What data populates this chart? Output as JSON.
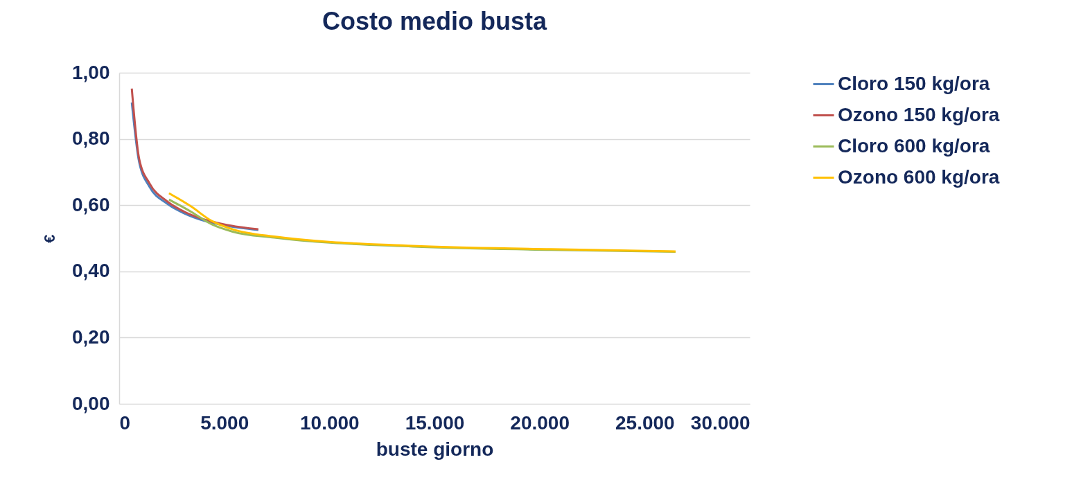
{
  "chart_data": {
    "type": "line",
    "title": "Costo medio busta",
    "xlabel": "buste giorno",
    "ylabel": "€",
    "xlim": [
      0,
      30000
    ],
    "ylim": [
      0,
      1
    ],
    "xticks": [
      {
        "value": 0,
        "label": "0"
      },
      {
        "value": 5000,
        "label": "5.000"
      },
      {
        "value": 10000,
        "label": "10.000"
      },
      {
        "value": 15000,
        "label": "15.000"
      },
      {
        "value": 20000,
        "label": "20.000"
      },
      {
        "value": 25000,
        "label": "25.000"
      },
      {
        "value": 30000,
        "label": "30.000"
      }
    ],
    "yticks": [
      {
        "value": 0,
        "label": "0,00"
      },
      {
        "value": 0.2,
        "label": "0,20"
      },
      {
        "value": 0.4,
        "label": "0,40"
      },
      {
        "value": 0.6,
        "label": "0,60"
      },
      {
        "value": 0.8,
        "label": "0,80"
      },
      {
        "value": 1,
        "label": "1,00"
      }
    ],
    "grid": "y",
    "legend": "right",
    "marker": "none",
    "line_style": "solid",
    "series": [
      {
        "name": "Cloro 150 kg/ora",
        "color": "#4f81bd",
        "x": [
          600,
          950,
          1450,
          2270,
          3100,
          4080,
          5070,
          6620
        ],
        "values": [
          0.91,
          0.73,
          0.655,
          0.605,
          0.575,
          0.552,
          0.538,
          0.525
        ]
      },
      {
        "name": "Ozono 150 kg/ora",
        "color": "#c0504d",
        "x": [
          600,
          950,
          1450,
          2270,
          3100,
          4080,
          5070,
          6620
        ],
        "values": [
          0.952,
          0.74,
          0.665,
          0.612,
          0.58,
          0.556,
          0.541,
          0.527
        ]
      },
      {
        "name": "Cloro 600 kg/ora",
        "color": "#9bbb59",
        "x": [
          2370,
          3420,
          4410,
          5400,
          7380,
          13960,
          20550,
          26470
        ],
        "values": [
          0.617,
          0.58,
          0.542,
          0.52,
          0.502,
          0.475,
          0.465,
          0.459
        ]
      },
      {
        "name": "Ozono 600 kg/ora",
        "color": "#ffc000",
        "x": [
          2370,
          3420,
          4410,
          5400,
          7380,
          13960,
          20550,
          26470
        ],
        "values": [
          0.636,
          0.596,
          0.552,
          0.527,
          0.505,
          0.477,
          0.467,
          0.46
        ]
      }
    ]
  }
}
